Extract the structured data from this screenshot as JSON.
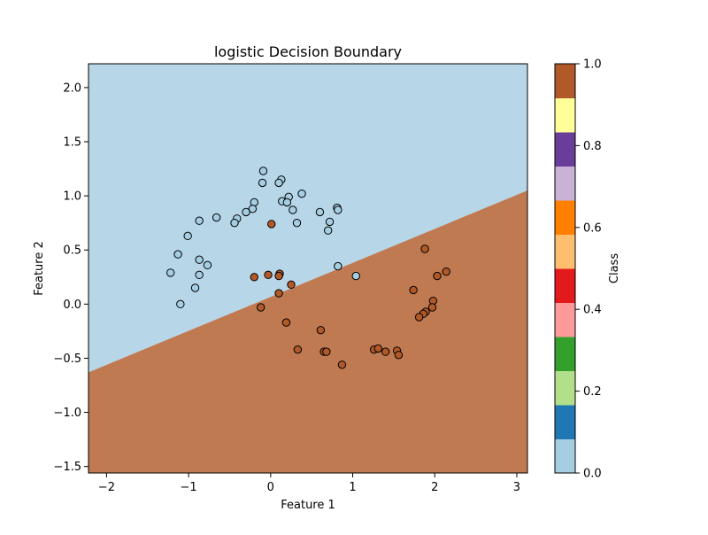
{
  "chart_data": [
    {
      "type": "scatter",
      "title": "logistic Decision Boundary",
      "xlabel": "Feature 1",
      "ylabel": "Feature 2",
      "xlim": [
        -2.22,
        3.13
      ],
      "ylim": [
        -1.56,
        2.22
      ],
      "xticks": [
        -2,
        -1,
        0,
        1,
        2,
        3
      ],
      "yticks": [
        -1.5,
        -1.0,
        -0.5,
        0.0,
        0.5,
        1.0,
        1.5,
        2.0
      ],
      "xtick_labels": [
        "−2",
        "−1",
        "0",
        "1",
        "2",
        "3"
      ],
      "ytick_labels": [
        "−1.5",
        "−1.0",
        "−0.5",
        "0.0",
        "0.5",
        "1.0",
        "1.5",
        "2.0"
      ],
      "grid": false,
      "decision_boundary": {
        "line": [
          [
            -2.22,
            -0.63
          ],
          [
            3.13,
            1.05
          ]
        ],
        "region_above_class": 0,
        "region_below_class": 1,
        "region_above_color": "#b7d6e8",
        "region_below_color": "#bf7a52"
      },
      "point_colors": {
        "0": "#a6cee3",
        "1": "#b15928"
      },
      "series": [
        {
          "class": 0,
          "points": [
            [
              -0.09,
              1.23
            ],
            [
              0.13,
              1.15
            ],
            [
              0.1,
              1.12
            ],
            [
              -0.1,
              1.12
            ],
            [
              0.38,
              1.02
            ],
            [
              0.22,
              0.99
            ],
            [
              0.14,
              0.95
            ],
            [
              0.2,
              0.94
            ],
            [
              -0.2,
              0.94
            ],
            [
              0.27,
              0.87
            ],
            [
              -0.22,
              0.88
            ],
            [
              0.81,
              0.89
            ],
            [
              0.82,
              0.87
            ],
            [
              -0.3,
              0.85
            ],
            [
              0.6,
              0.85
            ],
            [
              -0.66,
              0.8
            ],
            [
              -0.41,
              0.79
            ],
            [
              -0.87,
              0.77
            ],
            [
              -0.44,
              0.75
            ],
            [
              0.32,
              0.75
            ],
            [
              0.72,
              0.76
            ],
            [
              0.7,
              0.68
            ],
            [
              -1.01,
              0.63
            ],
            [
              -1.13,
              0.46
            ],
            [
              -0.87,
              0.41
            ],
            [
              -0.77,
              0.36
            ],
            [
              0.82,
              0.35
            ],
            [
              -1.22,
              0.29
            ],
            [
              -0.87,
              0.27
            ],
            [
              1.04,
              0.26
            ],
            [
              -0.92,
              0.15
            ],
            [
              -1.1,
              0.0
            ]
          ]
        },
        {
          "class": 1,
          "points": [
            [
              0.01,
              0.74
            ],
            [
              1.88,
              0.51
            ],
            [
              2.14,
              0.3
            ],
            [
              -0.2,
              0.25
            ],
            [
              -0.03,
              0.27
            ],
            [
              0.11,
              0.28
            ],
            [
              0.1,
              0.26
            ],
            [
              2.03,
              0.26
            ],
            [
              0.25,
              0.18
            ],
            [
              1.74,
              0.13
            ],
            [
              0.1,
              0.1
            ],
            [
              1.98,
              0.03
            ],
            [
              -0.12,
              -0.03
            ],
            [
              1.97,
              -0.03
            ],
            [
              1.89,
              -0.07
            ],
            [
              1.86,
              -0.09
            ],
            [
              1.81,
              -0.12
            ],
            [
              0.19,
              -0.17
            ],
            [
              0.61,
              -0.24
            ],
            [
              0.33,
              -0.42
            ],
            [
              1.26,
              -0.42
            ],
            [
              1.31,
              -0.41
            ],
            [
              1.4,
              -0.44
            ],
            [
              1.54,
              -0.43
            ],
            [
              0.65,
              -0.44
            ],
            [
              0.68,
              -0.44
            ],
            [
              1.56,
              -0.47
            ],
            [
              0.87,
              -0.56
            ]
          ]
        }
      ],
      "colorbar": {
        "label": "Class",
        "range": [
          0,
          1
        ],
        "ticks": [
          0.0,
          0.2,
          0.4,
          0.6,
          0.8,
          1.0
        ],
        "tick_labels": [
          "0.0",
          "0.2",
          "0.4",
          "0.6",
          "0.8",
          "1.0"
        ],
        "colors": [
          "#a6cee3",
          "#1f78b4",
          "#b2df8a",
          "#33a02c",
          "#fb9a99",
          "#e31a1c",
          "#fdbf6f",
          "#ff7f00",
          "#cab2d6",
          "#6a3d9a",
          "#ffff99",
          "#b15928"
        ]
      }
    }
  ]
}
